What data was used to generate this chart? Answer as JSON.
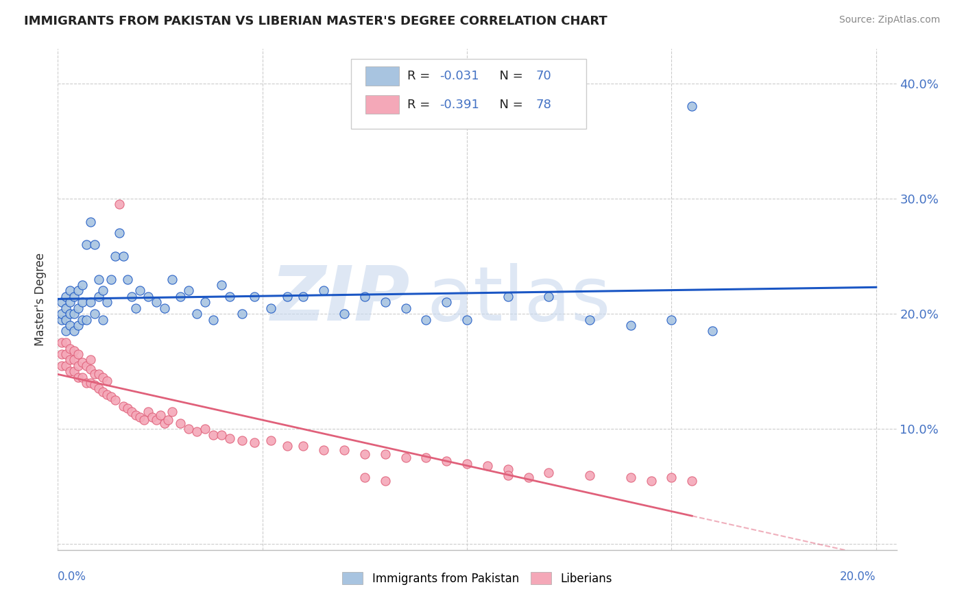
{
  "title": "IMMIGRANTS FROM PAKISTAN VS LIBERIAN MASTER'S DEGREE CORRELATION CHART",
  "source": "Source: ZipAtlas.com",
  "ylabel": "Master's Degree",
  "legend_label1": "Immigrants from Pakistan",
  "legend_label2": "Liberians",
  "r1": -0.031,
  "n1": 70,
  "r2": -0.391,
  "n2": 78,
  "color1": "#a8c4e0",
  "color2": "#f4a8b8",
  "line_color1": "#1a56c4",
  "line_color2": "#e0607a",
  "xlim": [
    0.0,
    0.205
  ],
  "ylim": [
    -0.005,
    0.43
  ],
  "scatter1_x": [
    0.001,
    0.001,
    0.001,
    0.002,
    0.002,
    0.002,
    0.002,
    0.003,
    0.003,
    0.003,
    0.003,
    0.004,
    0.004,
    0.004,
    0.005,
    0.005,
    0.005,
    0.006,
    0.006,
    0.006,
    0.007,
    0.007,
    0.008,
    0.008,
    0.009,
    0.009,
    0.01,
    0.01,
    0.011,
    0.011,
    0.012,
    0.013,
    0.014,
    0.015,
    0.016,
    0.017,
    0.018,
    0.019,
    0.02,
    0.022,
    0.024,
    0.026,
    0.028,
    0.03,
    0.032,
    0.034,
    0.036,
    0.038,
    0.04,
    0.042,
    0.045,
    0.048,
    0.052,
    0.056,
    0.06,
    0.065,
    0.07,
    0.075,
    0.08,
    0.085,
    0.09,
    0.095,
    0.1,
    0.11,
    0.12,
    0.13,
    0.14,
    0.15,
    0.155,
    0.16
  ],
  "scatter1_y": [
    0.195,
    0.2,
    0.21,
    0.185,
    0.195,
    0.205,
    0.215,
    0.19,
    0.2,
    0.21,
    0.22,
    0.185,
    0.2,
    0.215,
    0.19,
    0.205,
    0.22,
    0.195,
    0.21,
    0.225,
    0.195,
    0.26,
    0.21,
    0.28,
    0.2,
    0.26,
    0.215,
    0.23,
    0.195,
    0.22,
    0.21,
    0.23,
    0.25,
    0.27,
    0.25,
    0.23,
    0.215,
    0.205,
    0.22,
    0.215,
    0.21,
    0.205,
    0.23,
    0.215,
    0.22,
    0.2,
    0.21,
    0.195,
    0.225,
    0.215,
    0.2,
    0.215,
    0.205,
    0.215,
    0.215,
    0.22,
    0.2,
    0.215,
    0.21,
    0.205,
    0.195,
    0.21,
    0.195,
    0.215,
    0.215,
    0.195,
    0.19,
    0.195,
    0.38,
    0.185
  ],
  "scatter2_x": [
    0.001,
    0.001,
    0.001,
    0.002,
    0.002,
    0.002,
    0.003,
    0.003,
    0.003,
    0.004,
    0.004,
    0.004,
    0.005,
    0.005,
    0.005,
    0.006,
    0.006,
    0.007,
    0.007,
    0.008,
    0.008,
    0.008,
    0.009,
    0.009,
    0.01,
    0.01,
    0.011,
    0.011,
    0.012,
    0.012,
    0.013,
    0.014,
    0.015,
    0.016,
    0.017,
    0.018,
    0.019,
    0.02,
    0.021,
    0.022,
    0.023,
    0.024,
    0.025,
    0.026,
    0.027,
    0.028,
    0.03,
    0.032,
    0.034,
    0.036,
    0.038,
    0.04,
    0.042,
    0.045,
    0.048,
    0.052,
    0.056,
    0.06,
    0.065,
    0.07,
    0.075,
    0.08,
    0.085,
    0.09,
    0.095,
    0.1,
    0.105,
    0.11,
    0.12,
    0.13,
    0.14,
    0.145,
    0.15,
    0.155,
    0.11,
    0.115,
    0.075,
    0.08
  ],
  "scatter2_y": [
    0.155,
    0.165,
    0.175,
    0.155,
    0.165,
    0.175,
    0.15,
    0.16,
    0.17,
    0.15,
    0.16,
    0.168,
    0.145,
    0.155,
    0.165,
    0.145,
    0.158,
    0.14,
    0.155,
    0.14,
    0.152,
    0.16,
    0.138,
    0.148,
    0.135,
    0.148,
    0.132,
    0.145,
    0.13,
    0.142,
    0.128,
    0.125,
    0.295,
    0.12,
    0.118,
    0.115,
    0.112,
    0.11,
    0.108,
    0.115,
    0.11,
    0.108,
    0.112,
    0.105,
    0.108,
    0.115,
    0.105,
    0.1,
    0.098,
    0.1,
    0.095,
    0.095,
    0.092,
    0.09,
    0.088,
    0.09,
    0.085,
    0.085,
    0.082,
    0.082,
    0.078,
    0.078,
    0.075,
    0.075,
    0.072,
    0.07,
    0.068,
    0.065,
    0.062,
    0.06,
    0.058,
    0.055,
    0.058,
    0.055,
    0.06,
    0.058,
    0.058,
    0.055
  ]
}
